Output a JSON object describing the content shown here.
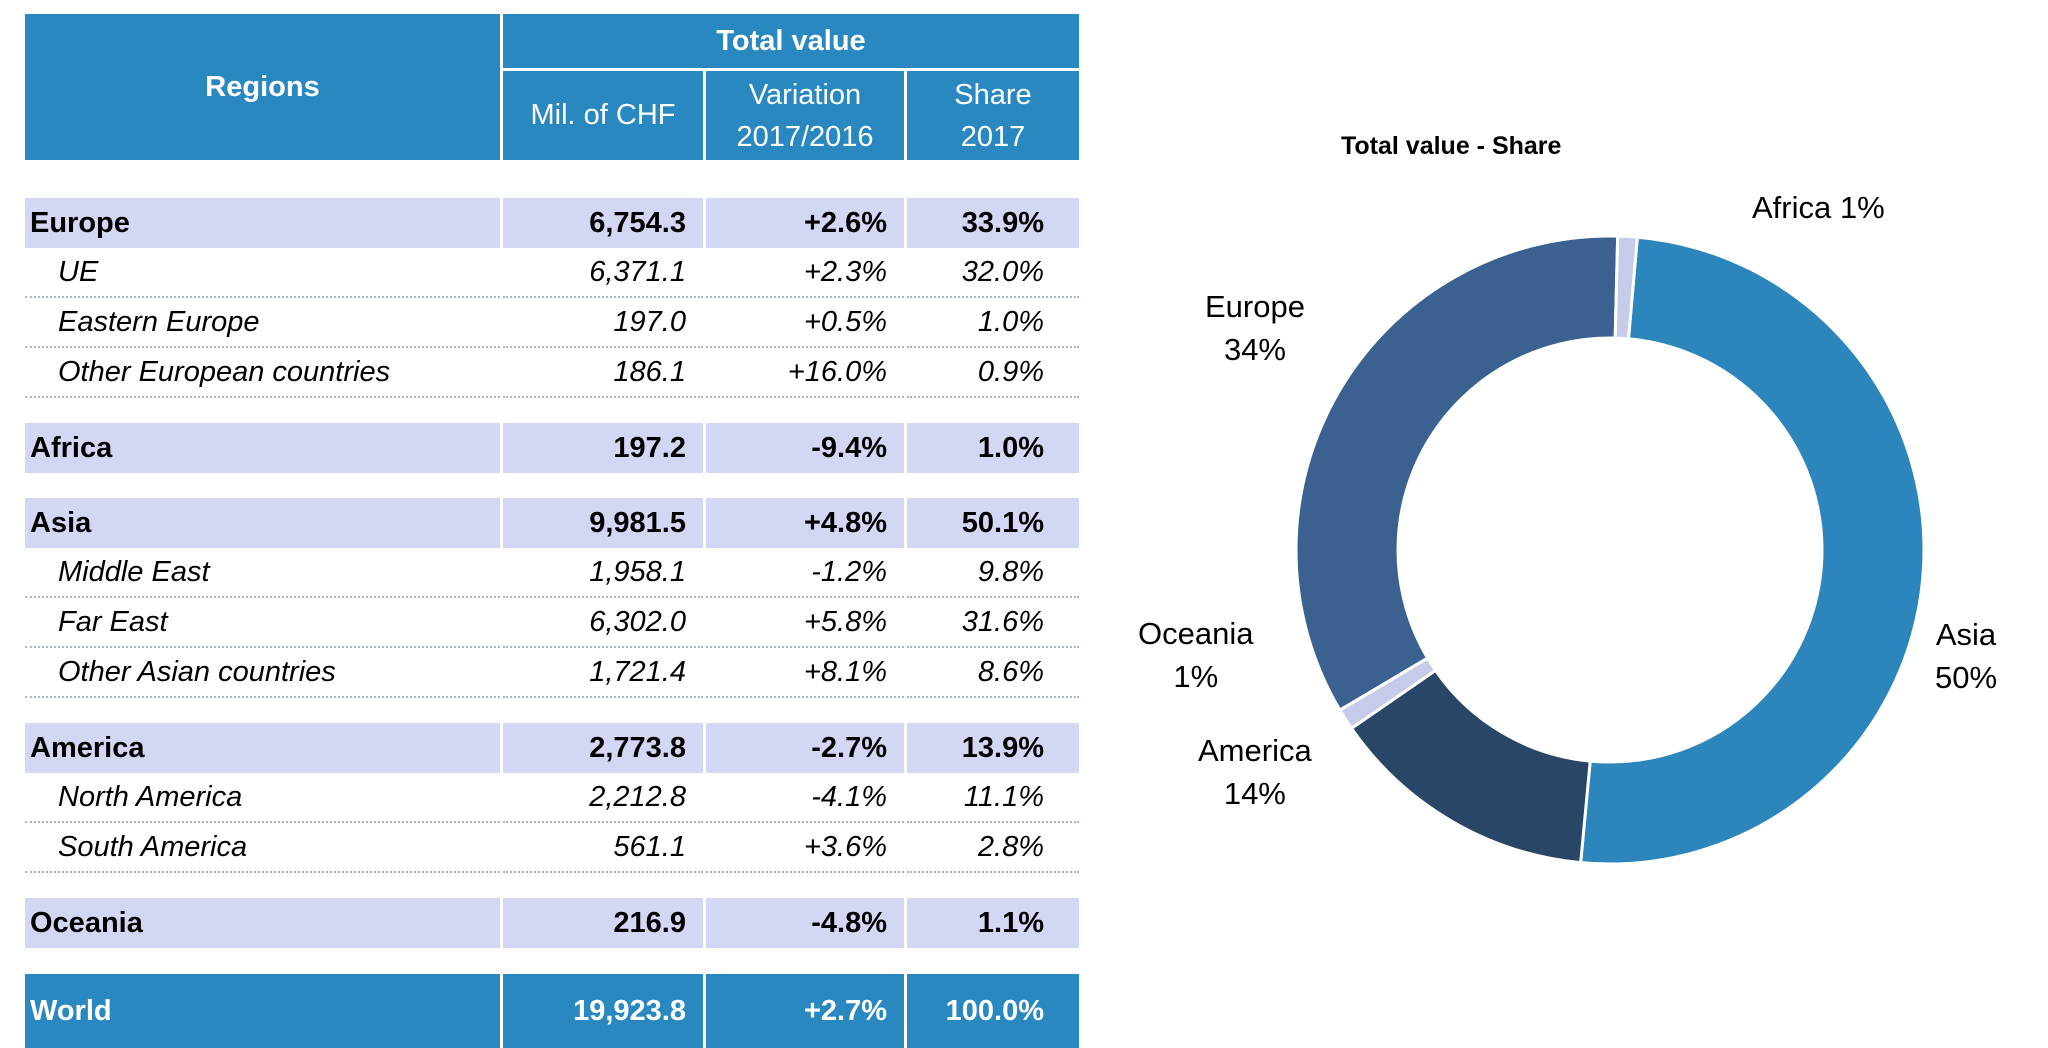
{
  "table": {
    "header": {
      "regions": "Regions",
      "total_value": "Total value",
      "mil_chf": "Mil. of CHF",
      "variation": [
        "Variation",
        "2017/2016"
      ],
      "share": [
        "Share",
        "2017"
      ]
    },
    "rows": [
      {
        "type": "region",
        "name": "Europe",
        "value": "6,754.3",
        "variation": "+2.6%",
        "share": "33.9%"
      },
      {
        "type": "sub",
        "name": "UE",
        "value": "6,371.1",
        "variation": "+2.3%",
        "share": "32.0%"
      },
      {
        "type": "sub",
        "name": "Eastern Europe",
        "value": "197.0",
        "variation": "+0.5%",
        "share": "1.0%"
      },
      {
        "type": "sub",
        "name": "Other European countries",
        "value": "186.1",
        "variation": "+16.0%",
        "share": "0.9%"
      },
      {
        "type": "region",
        "name": "Africa",
        "value": "197.2",
        "variation": "-9.4%",
        "share": "1.0%"
      },
      {
        "type": "region",
        "name": "Asia",
        "value": "9,981.5",
        "variation": "+4.8%",
        "share": "50.1%"
      },
      {
        "type": "sub",
        "name": "Middle East",
        "value": "1,958.1",
        "variation": "-1.2%",
        "share": "9.8%"
      },
      {
        "type": "sub",
        "name": "Far East",
        "value": "6,302.0",
        "variation": "+5.8%",
        "share": "31.6%"
      },
      {
        "type": "sub",
        "name": "Other Asian countries",
        "value": "1,721.4",
        "variation": "+8.1%",
        "share": "8.6%"
      },
      {
        "type": "region",
        "name": "America",
        "value": "2,773.8",
        "variation": "-2.7%",
        "share": "13.9%"
      },
      {
        "type": "sub",
        "name": "North America",
        "value": "2,212.8",
        "variation": "-4.1%",
        "share": "11.1%"
      },
      {
        "type": "sub",
        "name": "South America",
        "value": "561.1",
        "variation": "+3.6%",
        "share": "2.8%"
      },
      {
        "type": "region",
        "name": "Oceania",
        "value": "216.9",
        "variation": "-4.8%",
        "share": "1.1%"
      },
      {
        "type": "world",
        "name": "World",
        "value": "19,923.8",
        "variation": "+2.7%",
        "share": "100.0%"
      }
    ]
  },
  "chart_data": {
    "type": "pie",
    "title": "Total value - Share",
    "categories": [
      "Asia",
      "America",
      "Oceania",
      "Europe",
      "Africa"
    ],
    "values": [
      50.1,
      13.9,
      1.1,
      33.9,
      1.0
    ],
    "labels": [
      [
        "Asia",
        "50%"
      ],
      [
        "America",
        "14%"
      ],
      [
        "Oceania",
        "1%"
      ],
      [
        "Europe",
        "34%"
      ],
      [
        "Africa 1%"
      ]
    ],
    "colors": [
      "#2c86bc",
      "#2a4666",
      "#c5cbe9",
      "#3a6190",
      "#c5cbe9"
    ]
  }
}
